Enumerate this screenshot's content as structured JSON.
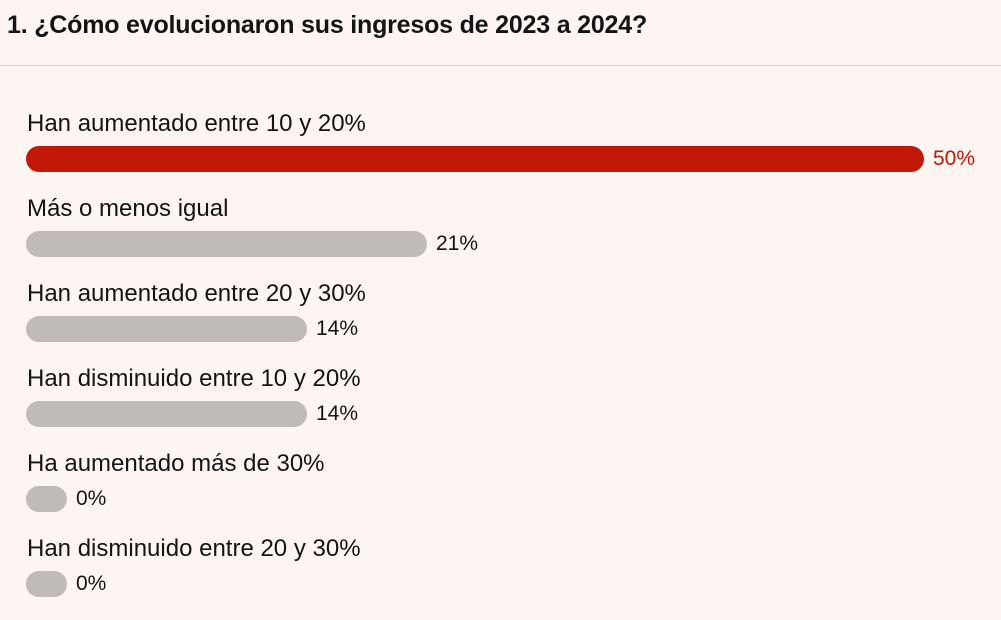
{
  "question": {
    "title": "1. ¿Cómo evolucionaron sus ingresos de 2023 a 2024?"
  },
  "colors": {
    "background": "#fdf5f1",
    "highlight": "#c21807",
    "bar_default": "#c0bbb7",
    "text": "#141414"
  },
  "chart_data": {
    "type": "bar",
    "orientation": "horizontal",
    "categories": [
      "Han aumentado entre 10 y 20%",
      "Más o menos igual",
      "Han aumentado entre 20 y 30%",
      "Han disminuido entre 10 y 20%",
      "Ha aumentado más de 30%",
      "Han disminuido entre 20 y 30%"
    ],
    "values": [
      50,
      21,
      14,
      14,
      0,
      0
    ],
    "value_labels": [
      "50%",
      "21%",
      "14%",
      "14%",
      "0%",
      "0%"
    ],
    "highlighted_index": 0,
    "xlim": [
      0,
      50
    ],
    "grid": false
  }
}
